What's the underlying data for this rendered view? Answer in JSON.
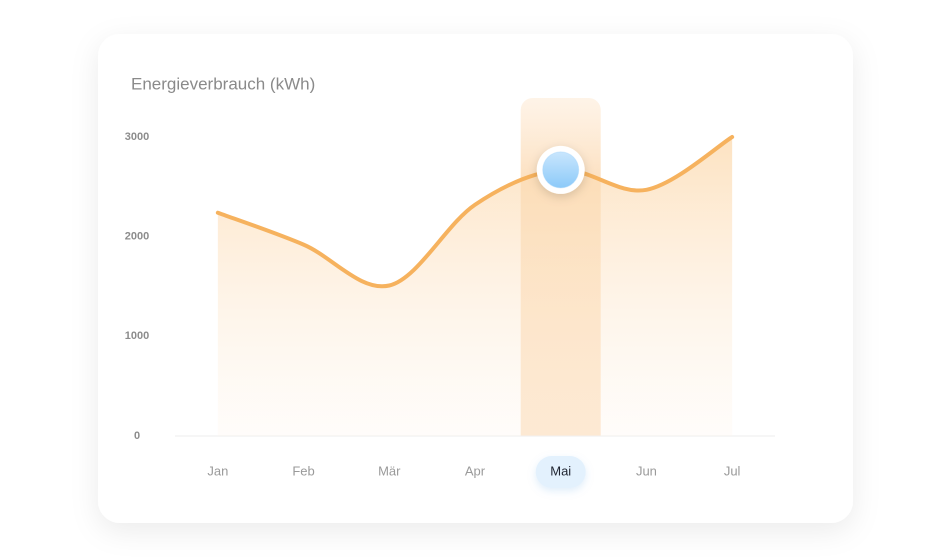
{
  "chart_data": {
    "type": "line",
    "title": "Energieverbrauch (kWh)",
    "categories": [
      "Jan",
      "Feb",
      "Mär",
      "Apr",
      "Mai",
      "Jun",
      "Jul"
    ],
    "values": [
      2240,
      1920,
      1510,
      2320,
      2670,
      2470,
      3000
    ],
    "color": "#f6b25e",
    "marker_color": "#9fd2fb",
    "ylim": [
      0,
      3000
    ],
    "yticks": [
      0,
      1000,
      2000,
      3000
    ],
    "selected": 4
  }
}
